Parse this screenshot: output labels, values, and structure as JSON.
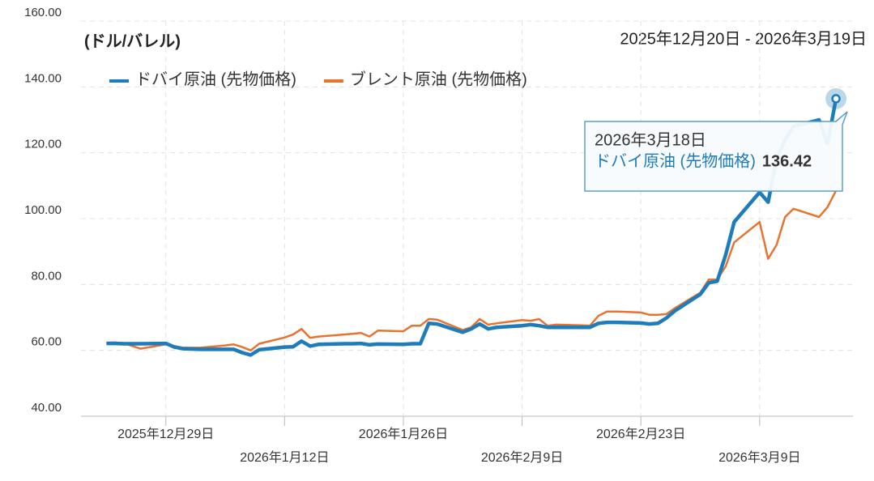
{
  "chart_data": {
    "type": "line",
    "subtitle": "2025年12月20日 - 2026年3月19日",
    "y_label": "(ドル/バレル)",
    "x": [
      "2025-12-22",
      "2025-12-23",
      "2025-12-24",
      "2025-12-26",
      "2025-12-29",
      "2025-12-30",
      "2025-12-31",
      "2026-01-02",
      "2026-01-05",
      "2026-01-06",
      "2026-01-07",
      "2026-01-08",
      "2026-01-09",
      "2026-01-12",
      "2026-01-13",
      "2026-01-14",
      "2026-01-15",
      "2026-01-16",
      "2026-01-19",
      "2026-01-20",
      "2026-01-21",
      "2026-01-22",
      "2026-01-23",
      "2026-01-26",
      "2026-01-27",
      "2026-01-28",
      "2026-01-29",
      "2026-01-30",
      "2026-02-02",
      "2026-02-03",
      "2026-02-04",
      "2026-02-05",
      "2026-02-06",
      "2026-02-09",
      "2026-02-10",
      "2026-02-11",
      "2026-02-12",
      "2026-02-13",
      "2026-02-16",
      "2026-02-17",
      "2026-02-18",
      "2026-02-19",
      "2026-02-20",
      "2026-02-23",
      "2026-02-24",
      "2026-02-25",
      "2026-02-26",
      "2026-02-27",
      "2026-03-02",
      "2026-03-03",
      "2026-03-04",
      "2026-03-05",
      "2026-03-06",
      "2026-03-09",
      "2026-03-10",
      "2026-03-11",
      "2026-03-12",
      "2026-03-13",
      "2026-03-16",
      "2026-03-17",
      "2026-03-18"
    ],
    "series": [
      {
        "name": "ドバイ原油 (先物価格)",
        "color": "#1f7cba",
        "values": [
          62.1,
          62.1,
          62.0,
          62.0,
          62.1,
          61.0,
          60.5,
          60.3,
          60.3,
          60.3,
          59.3,
          58.6,
          60.2,
          61.0,
          61.1,
          62.8,
          61.3,
          61.8,
          62.0,
          62.0,
          62.1,
          61.7,
          61.9,
          61.8,
          62.0,
          62.0,
          68.2,
          68.0,
          65.5,
          66.5,
          68.0,
          66.5,
          67.0,
          67.5,
          67.8,
          67.5,
          67.0,
          67.0,
          67.0,
          67.0,
          68.2,
          68.5,
          68.5,
          68.3,
          68.0,
          68.2,
          69.8,
          72.0,
          77.0,
          80.5,
          81.0,
          89.0,
          99.0,
          108.0,
          105.0,
          118.0,
          124.0,
          128.0,
          130.0,
          122.7,
          136.42
        ]
      },
      {
        "name": "ブレント原油 (先物価格)",
        "color": "#e8732f",
        "values": [
          62.3,
          62.4,
          62.2,
          60.5,
          61.8,
          61.3,
          60.8,
          60.8,
          61.5,
          61.8,
          61.0,
          60.0,
          62.0,
          63.9,
          64.8,
          66.5,
          63.8,
          64.2,
          64.8,
          65.0,
          65.3,
          64.2,
          66.0,
          65.8,
          67.5,
          67.5,
          69.5,
          69.3,
          66.2,
          67.0,
          69.5,
          67.8,
          68.2,
          69.2,
          69.0,
          69.5,
          67.5,
          67.8,
          67.6,
          67.5,
          70.5,
          71.8,
          71.8,
          71.5,
          70.8,
          70.8,
          71.0,
          72.8,
          77.5,
          81.5,
          81.5,
          85.5,
          92.8,
          99.0,
          87.8,
          92.0,
          100.5,
          103.0,
          100.5,
          103.5,
          108.5
        ]
      }
    ],
    "xlim": [
      "2025-12-19",
      "2026-03-20"
    ],
    "xticks": [
      {
        "value": "2025-12-29",
        "label": "2025年12月29日"
      },
      {
        "value": "2026-01-12",
        "label": "2026年1月12日"
      },
      {
        "value": "2026-01-26",
        "label": "2026年1月26日"
      },
      {
        "value": "2026-02-09",
        "label": "2026年2月9日"
      },
      {
        "value": "2026-02-23",
        "label": "2026年2月23日"
      },
      {
        "value": "2026-03-09",
        "label": "2026年3月9日"
      }
    ],
    "ylim": [
      40,
      160
    ],
    "yticks": [
      {
        "value": 40,
        "label": "40.00"
      },
      {
        "value": 60,
        "label": "60.00"
      },
      {
        "value": 80,
        "label": "80.00"
      },
      {
        "value": 100,
        "label": "100.00"
      },
      {
        "value": 120,
        "label": "120.00"
      },
      {
        "value": 140,
        "label": "140.00"
      },
      {
        "value": 160,
        "label": "160.00"
      }
    ],
    "grid": true,
    "legend": "top-left",
    "tooltip": {
      "x": "2026-03-18",
      "label": "2026年3月18日"
    }
  }
}
